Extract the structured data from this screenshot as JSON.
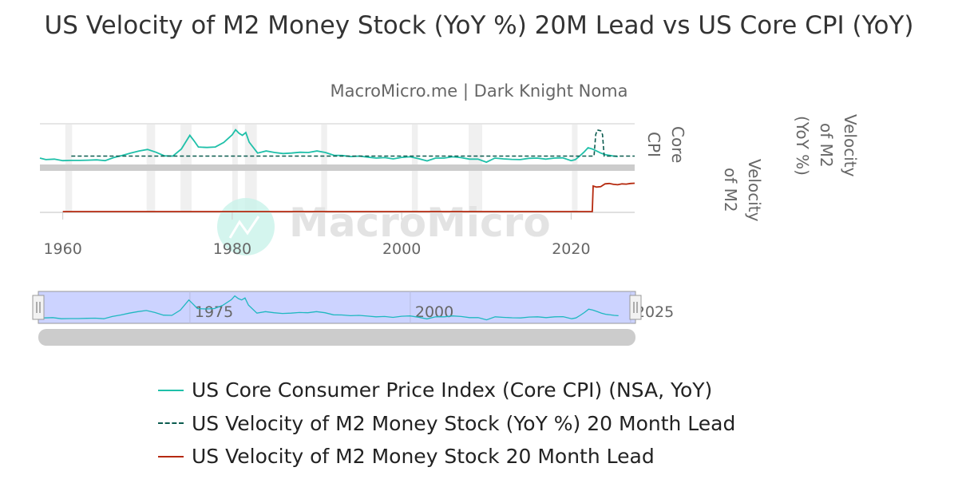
{
  "chart_data": {
    "type": "line",
    "title": "US Velocity of M2 Money Stock (YoY %) 20M Lead vs US Core CPI (YoY)",
    "subtitle": "MacroMicro.me | Dark Knight Noma",
    "xlim": [
      1957.3,
      2027.5
    ],
    "x_ticks": [
      "1960",
      "1980",
      "2000",
      "2020"
    ],
    "navigator_ticks": [
      "1975",
      "2000",
      "2025"
    ],
    "axis_titles": {
      "top_panel": "Core CPI",
      "bottom_panel": "Velocity of M2",
      "right": "Velocity of M2 (YoY %)"
    },
    "recessions": [
      [
        1960.3,
        1961.1
      ],
      [
        1969.9,
        1970.9
      ],
      [
        1973.9,
        1975.2
      ],
      [
        1980.0,
        1980.5
      ],
      [
        1981.5,
        1982.9
      ],
      [
        1990.5,
        1991.2
      ],
      [
        2001.2,
        2001.9
      ],
      [
        2007.9,
        2009.5
      ],
      [
        2020.1,
        2020.4
      ]
    ],
    "grid": true,
    "legend_position": "bottom",
    "series": [
      {
        "name": "US Core Consumer Price Index (Core CPI) (NSA, YoY)",
        "color": "#1fc0a9",
        "style": "solid",
        "panel": "top",
        "x": [
          1957.3,
          1958,
          1959,
          1960,
          1961,
          1962,
          1963,
          1964,
          1965,
          1966,
          1967,
          1968,
          1969,
          1970,
          1971,
          1972,
          1973,
          1974,
          1975,
          1975.5,
          1976,
          1977,
          1978,
          1979,
          1980,
          1980.4,
          1980.8,
          1981.2,
          1981.6,
          1982,
          1983,
          1984,
          1985,
          1986,
          1987,
          1988,
          1989,
          1990,
          1991,
          1992,
          1993,
          1994,
          1995,
          1996,
          1997,
          1998,
          1999,
          2000,
          2001,
          2002,
          2003,
          2004,
          2005,
          2006,
          2007,
          2008,
          2009,
          2010,
          2011,
          2012,
          2013,
          2014,
          2015,
          2016,
          2017,
          2018,
          2019,
          2020,
          2020.5,
          2021,
          2021.5,
          2022,
          2022.5,
          2023,
          2023.5,
          2024,
          2025,
          2025.5
        ],
        "y": [
          2.2,
          1.6,
          1.8,
          1.2,
          1.3,
          1.3,
          1.4,
          1.5,
          1.2,
          2.4,
          3.2,
          4.2,
          5.0,
          5.6,
          4.5,
          3.1,
          3.0,
          5.8,
          11.2,
          9.0,
          6.6,
          6.4,
          6.6,
          8.4,
          11.4,
          13.4,
          12.0,
          11.2,
          12.3,
          8.5,
          4.2,
          5.0,
          4.4,
          4.0,
          4.2,
          4.5,
          4.4,
          5.0,
          4.4,
          3.3,
          3.2,
          2.8,
          3.0,
          2.6,
          2.2,
          2.4,
          1.9,
          2.5,
          2.7,
          2.0,
          1.1,
          2.2,
          2.2,
          2.7,
          2.4,
          1.8,
          1.8,
          0.6,
          2.2,
          1.9,
          1.7,
          1.6,
          2.1,
          2.2,
          1.8,
          2.2,
          2.3,
          1.2,
          1.6,
          3.0,
          4.5,
          6.3,
          5.8,
          5.0,
          4.2,
          3.6,
          3.0,
          2.8
        ]
      },
      {
        "name": "US Velocity of M2 Money Stock (YoY %) 20 Month Lead",
        "color": "#0b5b4f",
        "style": "dashed",
        "panel": "top",
        "x": [
          1961,
          2022.7,
          2022.9,
          2023.1,
          2023.5,
          2023.7,
          2023.9,
          2027.5
        ],
        "y": [
          3.0,
          3.0,
          11.5,
          13.3,
          13.0,
          11.5,
          3.0,
          3.0
        ]
      },
      {
        "name": "US Velocity of M2 Money Stock 20 Month Lead",
        "color": "#b5290e",
        "style": "solid",
        "panel": "bottom",
        "x": [
          1960,
          2022.5,
          2022.6,
          2023.0,
          2023.5,
          2024.0,
          2024.5,
          2025.0,
          2025.5,
          2026.0,
          2026.5,
          2027.0,
          2027.5
        ],
        "y": [
          0,
          0,
          1.2,
          1.15,
          1.17,
          1.3,
          1.32,
          1.28,
          1.26,
          1.3,
          1.29,
          1.32,
          1.33
        ]
      }
    ],
    "top_ylim": [
      0,
      14.5
    ],
    "bottom_ylim": [
      0,
      1.5
    ]
  },
  "watermark": "MacroMicro"
}
